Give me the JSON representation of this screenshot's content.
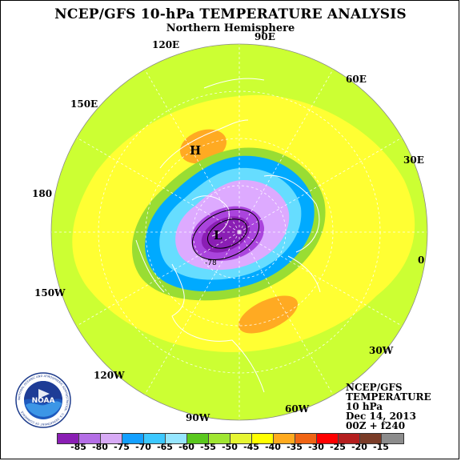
{
  "title": "NCEP/GFS 10-hPa TEMPERATURE ANALYSIS",
  "subtitle": "Northern Hemisphere",
  "longitude_labels": [
    "90E",
    "60E",
    "30E",
    "0",
    "30W",
    "60W",
    "90W",
    "120W",
    "150W",
    "180",
    "150E",
    "120E"
  ],
  "highs_lows": [
    {
      "symbol": "H"
    },
    {
      "symbol": "L"
    }
  ],
  "contour_label": "-78",
  "info": {
    "line1": "NCEP/GFS",
    "line2": "TEMPERATURE",
    "line3": "10 hPa",
    "line4": "Dec 14, 2013",
    "line5": "00Z + f240"
  },
  "logo_text": {
    "center": "NOAA",
    "ring": "NATIONAL OCEANIC AND ATMOSPHERIC ADMINISTRATION · U.S. DEPARTMENT OF COMMERCE"
  },
  "colorbar": {
    "colors": [
      "#8a1eb4",
      "#b46ee6",
      "#d7aaf5",
      "#14a0ff",
      "#3cc8ff",
      "#96e6ff",
      "#5ac81e",
      "#a0e632",
      "#e6f532",
      "#ffff00",
      "#ffaa1e",
      "#f06414",
      "#ff0000",
      "#b41e1e",
      "#7a3c28",
      "#8c8c8c"
    ],
    "ticks": [
      "-85",
      "-80",
      "-75",
      "-70",
      "-65",
      "-60",
      "-55",
      "-50",
      "-45",
      "-40",
      "-35",
      "-30",
      "-25",
      "-20",
      "-15"
    ]
  },
  "map_colors": {
    "outer": "#ccff33",
    "band_yellow": "#ffff33",
    "band_green": "#99dd33",
    "band_blue": "#00aaff",
    "band_lightblue": "#66ddff",
    "band_lavender": "#ddaaff",
    "band_purple": "#aa44dd",
    "band_core": "#8a1eb4",
    "warm_orange": "#ffaa22"
  }
}
